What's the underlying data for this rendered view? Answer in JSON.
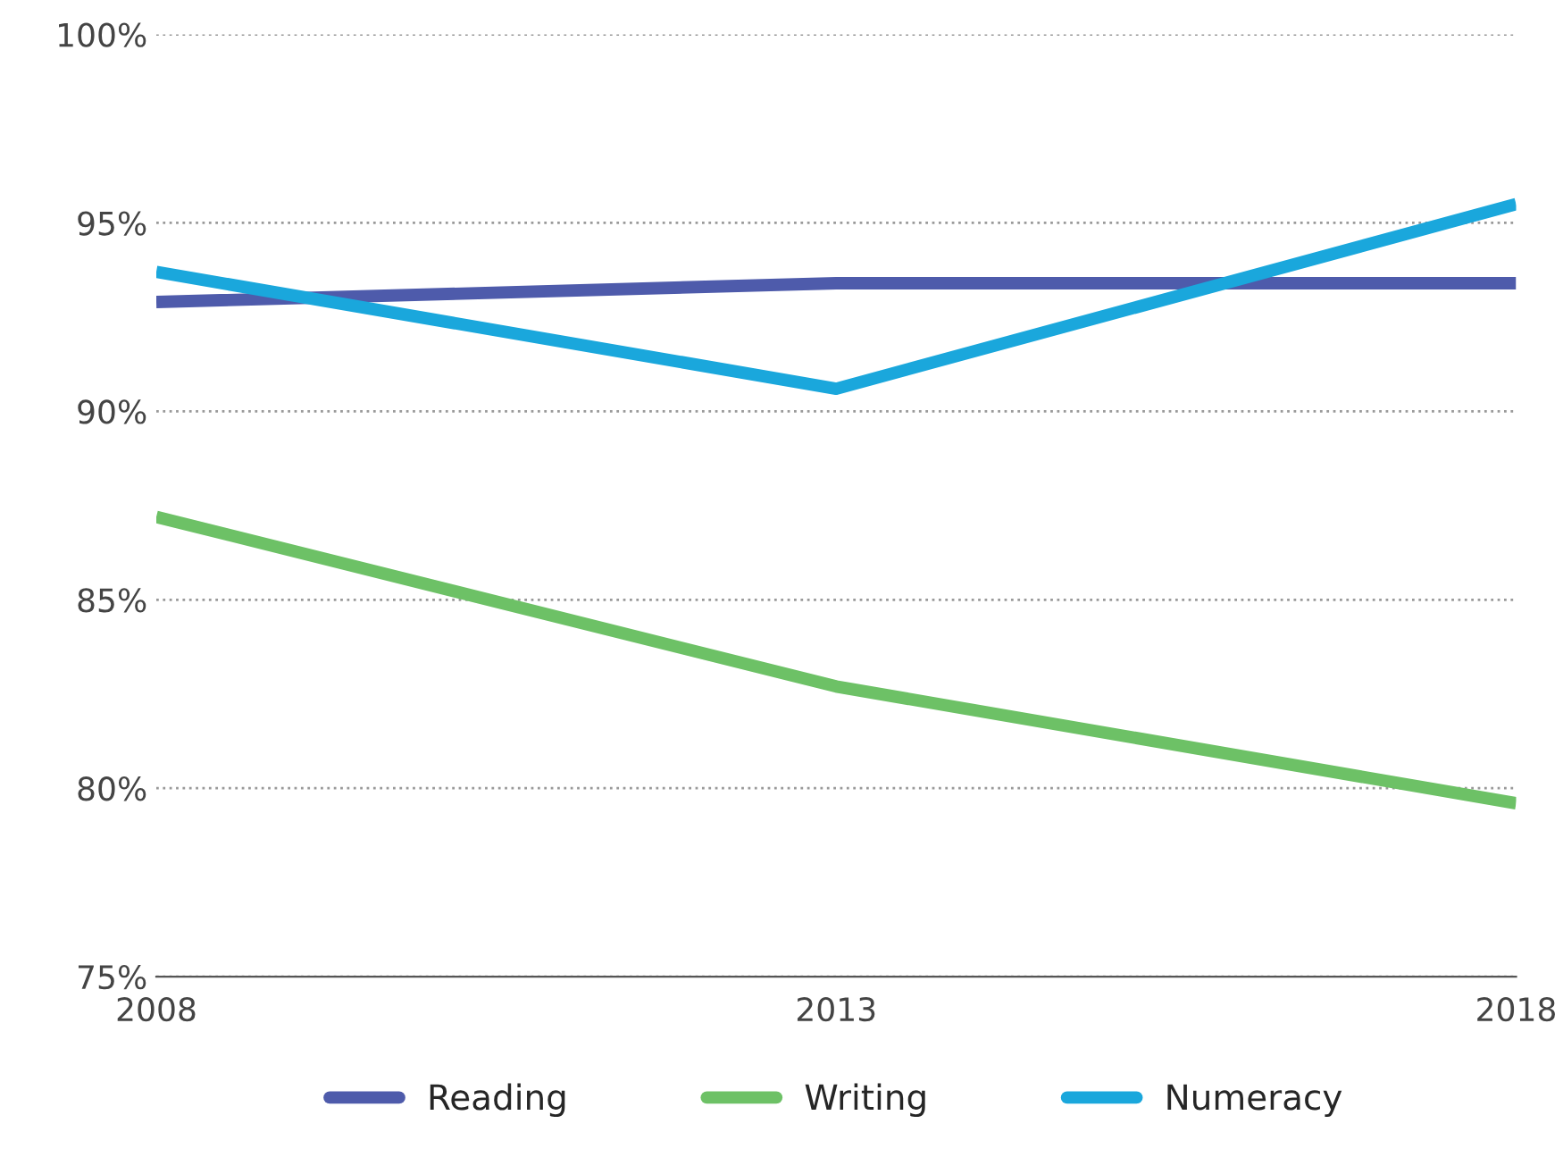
{
  "chart_data": {
    "type": "line",
    "x": [
      2008,
      2013,
      2018
    ],
    "xlim": [
      2008,
      2018
    ],
    "xticks": [
      2008,
      2013,
      2018
    ],
    "ylim": [
      75,
      100
    ],
    "yticks": [
      {
        "value": 75,
        "label": "75%"
      },
      {
        "value": 80,
        "label": "80%"
      },
      {
        "value": 85,
        "label": "85%"
      },
      {
        "value": 90,
        "label": "90%"
      },
      {
        "value": 95,
        "label": "95%"
      },
      {
        "value": 100,
        "label": "100%"
      }
    ],
    "series": [
      {
        "name": "Reading",
        "color": "#4e5bab",
        "values": [
          92.9,
          93.4,
          93.4
        ]
      },
      {
        "name": "Writing",
        "color": "#6dc166",
        "values": [
          87.2,
          82.7,
          79.6
        ]
      },
      {
        "name": "Numeracy",
        "color": "#1aa7dc",
        "values": [
          93.7,
          90.6,
          95.5
        ]
      }
    ],
    "grid": "y",
    "legend": "bottom",
    "marker": "none",
    "line_style": "solid"
  }
}
